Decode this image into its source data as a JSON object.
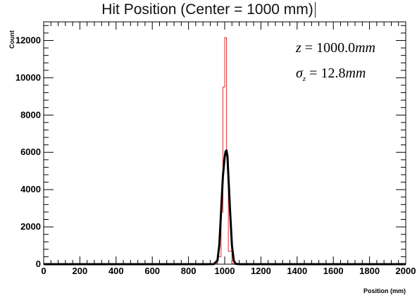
{
  "chart_data": {
    "type": "line",
    "title": "Hit Position (Center = 1000 mm)",
    "xlabel": "Position (mm)",
    "ylabel": "Count",
    "xlim": [
      0,
      2000
    ],
    "ylim": [
      0,
      13000
    ],
    "x_ticks": [
      "0",
      "200",
      "400",
      "600",
      "800",
      "1000",
      "1200",
      "1400",
      "1600",
      "1800",
      "2000"
    ],
    "y_ticks": [
      "0",
      "2000",
      "4000",
      "6000",
      "8000",
      "10000",
      "12000"
    ],
    "grid": false,
    "annotations": {
      "z": {
        "symbol": "z",
        "equals": " = ",
        "value": "1000.0",
        "unit": "mm"
      },
      "sigma": {
        "symbol": "σ",
        "subscript": "z",
        "equals": " = ",
        "value": "12.8",
        "unit": "mm"
      }
    },
    "series": [
      {
        "style": "thin-red-histogram",
        "color": "#e03030",
        "x": [
          0,
          920,
          940,
          960,
          980,
          990,
          1000,
          1010,
          1020,
          1040,
          1060,
          2000
        ],
        "values": [
          0,
          0,
          50,
          400,
          2800,
          9500,
          12150,
          5800,
          700,
          30,
          0,
          0
        ]
      },
      {
        "style": "thick-black-curve",
        "color": "#000000",
        "x": [
          0,
          900,
          940,
          960,
          970,
          980,
          990,
          1000,
          1005,
          1010,
          1015,
          1020,
          1030,
          1040,
          1050,
          1060,
          1080,
          2000
        ],
        "values": [
          0,
          0,
          5,
          200,
          1000,
          2800,
          4700,
          5750,
          6050,
          6100,
          5800,
          4800,
          2800,
          1000,
          200,
          20,
          0,
          0
        ]
      }
    ]
  }
}
